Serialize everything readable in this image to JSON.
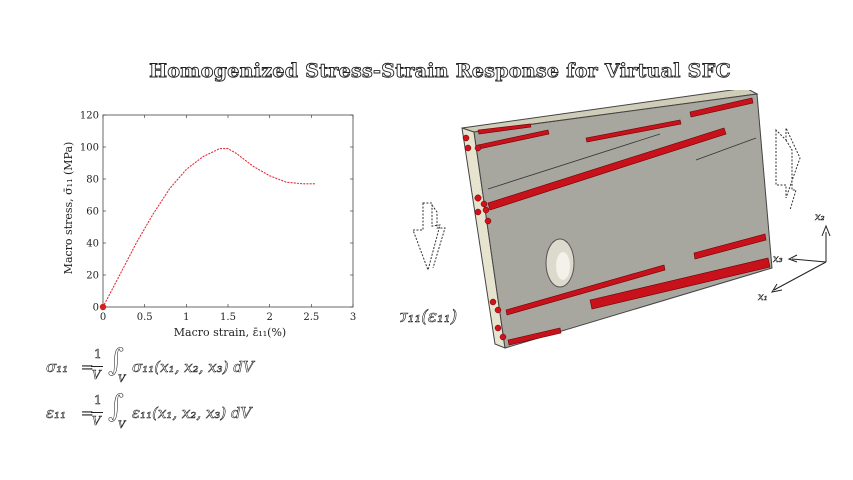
{
  "title": "Homogenized Stress-Strain Response for Virtual SFC",
  "chart_data": {
    "type": "line",
    "xlabel": "Macro strain, ε̄₁₁(%)",
    "ylabel": "Macro stress, σ̄₁₁ (MPa)",
    "xlim": [
      0,
      3
    ],
    "ylim": [
      0,
      120
    ],
    "xticks": [
      0,
      0.5,
      1,
      1.5,
      2,
      2.5,
      3
    ],
    "yticks": [
      0,
      20,
      40,
      60,
      80,
      100,
      120
    ],
    "grid": false,
    "series": [
      {
        "line_style": "dotted",
        "color": "#e0303a",
        "x": [
          0,
          0.2,
          0.4,
          0.6,
          0.8,
          1.0,
          1.2,
          1.4,
          1.5,
          1.6,
          1.8,
          2.0,
          2.2,
          2.4,
          2.55
        ],
        "y": [
          0,
          20,
          40,
          58,
          74,
          86,
          94,
          99,
          99,
          96,
          88,
          82,
          78,
          77,
          77
        ]
      }
    ],
    "marker_point": {
      "x": 0,
      "y": 0,
      "color": "#d62020"
    }
  },
  "equations": {
    "stress": {
      "lhs": "σ₁₁",
      "eq": "=",
      "num": "1",
      "den": "V",
      "integrand": "σ₁₁(x₁, x₂, x₃) dV",
      "domain": "V"
    },
    "strain": {
      "lhs": "ε₁₁",
      "eq": "=",
      "num": "1",
      "den": "V",
      "integrand": "ε₁₁(x₁, x₂, x₃) dV",
      "domain": "V"
    }
  },
  "figure": {
    "load_label": "σ₁₁(ε₁₁)",
    "axes_labels": {
      "x1": "x₁",
      "x2": "x₂",
      "x3": "x₃"
    },
    "colors": {
      "matrix": "#a8a79f",
      "matrix_side": "#e6e4cf",
      "fiber": "#c8111b",
      "arrow_fill": "#ffffff"
    }
  }
}
